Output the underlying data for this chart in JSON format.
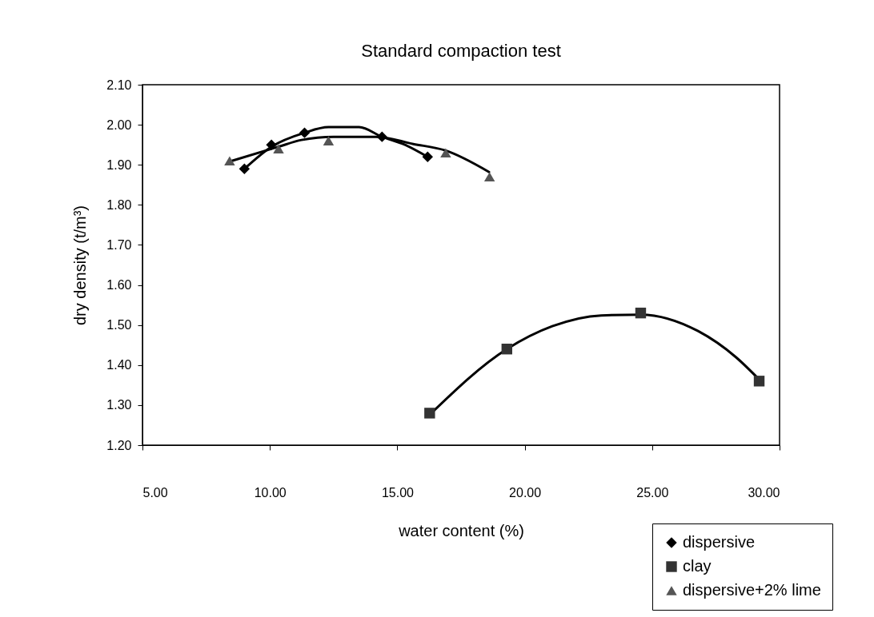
{
  "chart_data": {
    "type": "scatter",
    "title": "Standard compaction test",
    "xlabel": "water content (%)",
    "ylabel": "dry density (t/m³)",
    "xlim": [
      5,
      30
    ],
    "xticks": [
      {
        "value": 5,
        "label": "5.00"
      },
      {
        "value": 10,
        "label": "10.00"
      },
      {
        "value": 15,
        "label": "15.00"
      },
      {
        "value": 20,
        "label": "20.00"
      },
      {
        "value": 25,
        "label": "25.00"
      },
      {
        "value": 30,
        "label": "30.00"
      }
    ],
    "ylim": [
      1.2,
      2.1
    ],
    "yticks": [
      {
        "value": 1.2,
        "label": "1.20"
      },
      {
        "value": 1.3,
        "label": "1.30"
      },
      {
        "value": 1.4,
        "label": "1.40"
      },
      {
        "value": 1.5,
        "label": "1.50"
      },
      {
        "value": 1.6,
        "label": "1.60"
      },
      {
        "value": 1.7,
        "label": "1.70"
      },
      {
        "value": 1.8,
        "label": "1.80"
      },
      {
        "value": 1.9,
        "label": "1.90"
      },
      {
        "value": 2.0,
        "label": "2.00"
      },
      {
        "value": 2.1,
        "label": "2.10"
      }
    ],
    "legend": "bottom right",
    "line_style": "solid",
    "series": [
      {
        "type": "line",
        "color": "#000000",
        "x": [
          9.0,
          10.06,
          11.36,
          12.3,
          13.5,
          14.4,
          15.3,
          16.19
        ],
        "values": [
          1.89,
          1.945,
          1.98,
          1.994,
          1.994,
          1.97,
          1.95,
          1.92
        ]
      },
      {
        "type": "line",
        "color": "#000000",
        "x": [
          8.51,
          10.33,
          11.24,
          12.5,
          14.15,
          15.63,
          16.88,
          18.6
        ],
        "values": [
          1.91,
          1.945,
          1.962,
          1.97,
          1.97,
          1.952,
          1.936,
          1.882
        ]
      },
      {
        "type": "line",
        "color": "#000000",
        "x": [
          16.27,
          19.3,
          21.08,
          23.0,
          24.55,
          26.8,
          28.3,
          29.2
        ],
        "values": [
          1.276,
          1.44,
          1.497,
          1.524,
          1.526,
          1.485,
          1.419,
          1.364
        ]
      },
      {
        "name": "dispersive",
        "type": "scatter",
        "marker": "diamond",
        "color": "#000000",
        "x": [
          9.0,
          10.06,
          11.36,
          14.4,
          16.19
        ],
        "values": [
          1.89,
          1.95,
          1.98,
          1.97,
          1.92
        ]
      },
      {
        "name": "clay",
        "type": "scatter",
        "marker": "square",
        "color": "#333333",
        "x": [
          16.27,
          19.3,
          24.55,
          29.2
        ],
        "values": [
          1.28,
          1.44,
          1.53,
          1.36
        ]
      },
      {
        "name": "dispersive+2% lime",
        "type": "scatter",
        "marker": "triangle",
        "color": "#555555",
        "x": [
          8.42,
          10.34,
          12.3,
          16.9,
          18.62
        ],
        "values": [
          1.91,
          1.94,
          1.96,
          1.93,
          1.87
        ]
      }
    ]
  }
}
